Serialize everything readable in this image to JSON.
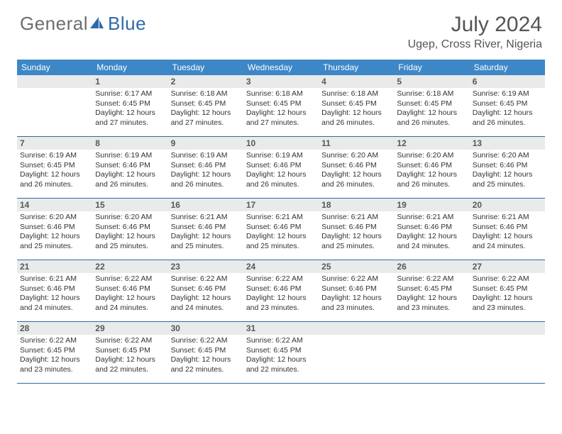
{
  "brand": {
    "text1": "General",
    "text2": "Blue"
  },
  "title": "July 2024",
  "location": "Ugep, Cross River, Nigeria",
  "colors": {
    "header_bg": "#3d87c7",
    "band_bg": "#e9eaea",
    "rule": "#2f6aa8",
    "logo_gray": "#6d6d6d",
    "logo_blue": "#2f6aa8"
  },
  "weekdays": [
    "Sunday",
    "Monday",
    "Tuesday",
    "Wednesday",
    "Thursday",
    "Friday",
    "Saturday"
  ],
  "weeks": [
    [
      {
        "day": "",
        "sunrise": "",
        "sunset": "",
        "daylight": ""
      },
      {
        "day": "1",
        "sunrise": "Sunrise: 6:17 AM",
        "sunset": "Sunset: 6:45 PM",
        "daylight": "Daylight: 12 hours and 27 minutes."
      },
      {
        "day": "2",
        "sunrise": "Sunrise: 6:18 AM",
        "sunset": "Sunset: 6:45 PM",
        "daylight": "Daylight: 12 hours and 27 minutes."
      },
      {
        "day": "3",
        "sunrise": "Sunrise: 6:18 AM",
        "sunset": "Sunset: 6:45 PM",
        "daylight": "Daylight: 12 hours and 27 minutes."
      },
      {
        "day": "4",
        "sunrise": "Sunrise: 6:18 AM",
        "sunset": "Sunset: 6:45 PM",
        "daylight": "Daylight: 12 hours and 26 minutes."
      },
      {
        "day": "5",
        "sunrise": "Sunrise: 6:18 AM",
        "sunset": "Sunset: 6:45 PM",
        "daylight": "Daylight: 12 hours and 26 minutes."
      },
      {
        "day": "6",
        "sunrise": "Sunrise: 6:19 AM",
        "sunset": "Sunset: 6:45 PM",
        "daylight": "Daylight: 12 hours and 26 minutes."
      }
    ],
    [
      {
        "day": "7",
        "sunrise": "Sunrise: 6:19 AM",
        "sunset": "Sunset: 6:45 PM",
        "daylight": "Daylight: 12 hours and 26 minutes."
      },
      {
        "day": "8",
        "sunrise": "Sunrise: 6:19 AM",
        "sunset": "Sunset: 6:46 PM",
        "daylight": "Daylight: 12 hours and 26 minutes."
      },
      {
        "day": "9",
        "sunrise": "Sunrise: 6:19 AM",
        "sunset": "Sunset: 6:46 PM",
        "daylight": "Daylight: 12 hours and 26 minutes."
      },
      {
        "day": "10",
        "sunrise": "Sunrise: 6:19 AM",
        "sunset": "Sunset: 6:46 PM",
        "daylight": "Daylight: 12 hours and 26 minutes."
      },
      {
        "day": "11",
        "sunrise": "Sunrise: 6:20 AM",
        "sunset": "Sunset: 6:46 PM",
        "daylight": "Daylight: 12 hours and 26 minutes."
      },
      {
        "day": "12",
        "sunrise": "Sunrise: 6:20 AM",
        "sunset": "Sunset: 6:46 PM",
        "daylight": "Daylight: 12 hours and 26 minutes."
      },
      {
        "day": "13",
        "sunrise": "Sunrise: 6:20 AM",
        "sunset": "Sunset: 6:46 PM",
        "daylight": "Daylight: 12 hours and 25 minutes."
      }
    ],
    [
      {
        "day": "14",
        "sunrise": "Sunrise: 6:20 AM",
        "sunset": "Sunset: 6:46 PM",
        "daylight": "Daylight: 12 hours and 25 minutes."
      },
      {
        "day": "15",
        "sunrise": "Sunrise: 6:20 AM",
        "sunset": "Sunset: 6:46 PM",
        "daylight": "Daylight: 12 hours and 25 minutes."
      },
      {
        "day": "16",
        "sunrise": "Sunrise: 6:21 AM",
        "sunset": "Sunset: 6:46 PM",
        "daylight": "Daylight: 12 hours and 25 minutes."
      },
      {
        "day": "17",
        "sunrise": "Sunrise: 6:21 AM",
        "sunset": "Sunset: 6:46 PM",
        "daylight": "Daylight: 12 hours and 25 minutes."
      },
      {
        "day": "18",
        "sunrise": "Sunrise: 6:21 AM",
        "sunset": "Sunset: 6:46 PM",
        "daylight": "Daylight: 12 hours and 25 minutes."
      },
      {
        "day": "19",
        "sunrise": "Sunrise: 6:21 AM",
        "sunset": "Sunset: 6:46 PM",
        "daylight": "Daylight: 12 hours and 24 minutes."
      },
      {
        "day": "20",
        "sunrise": "Sunrise: 6:21 AM",
        "sunset": "Sunset: 6:46 PM",
        "daylight": "Daylight: 12 hours and 24 minutes."
      }
    ],
    [
      {
        "day": "21",
        "sunrise": "Sunrise: 6:21 AM",
        "sunset": "Sunset: 6:46 PM",
        "daylight": "Daylight: 12 hours and 24 minutes."
      },
      {
        "day": "22",
        "sunrise": "Sunrise: 6:22 AM",
        "sunset": "Sunset: 6:46 PM",
        "daylight": "Daylight: 12 hours and 24 minutes."
      },
      {
        "day": "23",
        "sunrise": "Sunrise: 6:22 AM",
        "sunset": "Sunset: 6:46 PM",
        "daylight": "Daylight: 12 hours and 24 minutes."
      },
      {
        "day": "24",
        "sunrise": "Sunrise: 6:22 AM",
        "sunset": "Sunset: 6:46 PM",
        "daylight": "Daylight: 12 hours and 23 minutes."
      },
      {
        "day": "25",
        "sunrise": "Sunrise: 6:22 AM",
        "sunset": "Sunset: 6:46 PM",
        "daylight": "Daylight: 12 hours and 23 minutes."
      },
      {
        "day": "26",
        "sunrise": "Sunrise: 6:22 AM",
        "sunset": "Sunset: 6:45 PM",
        "daylight": "Daylight: 12 hours and 23 minutes."
      },
      {
        "day": "27",
        "sunrise": "Sunrise: 6:22 AM",
        "sunset": "Sunset: 6:45 PM",
        "daylight": "Daylight: 12 hours and 23 minutes."
      }
    ],
    [
      {
        "day": "28",
        "sunrise": "Sunrise: 6:22 AM",
        "sunset": "Sunset: 6:45 PM",
        "daylight": "Daylight: 12 hours and 23 minutes."
      },
      {
        "day": "29",
        "sunrise": "Sunrise: 6:22 AM",
        "sunset": "Sunset: 6:45 PM",
        "daylight": "Daylight: 12 hours and 22 minutes."
      },
      {
        "day": "30",
        "sunrise": "Sunrise: 6:22 AM",
        "sunset": "Sunset: 6:45 PM",
        "daylight": "Daylight: 12 hours and 22 minutes."
      },
      {
        "day": "31",
        "sunrise": "Sunrise: 6:22 AM",
        "sunset": "Sunset: 6:45 PM",
        "daylight": "Daylight: 12 hours and 22 minutes."
      },
      {
        "day": "",
        "sunrise": "",
        "sunset": "",
        "daylight": ""
      },
      {
        "day": "",
        "sunrise": "",
        "sunset": "",
        "daylight": ""
      },
      {
        "day": "",
        "sunrise": "",
        "sunset": "",
        "daylight": ""
      }
    ]
  ]
}
